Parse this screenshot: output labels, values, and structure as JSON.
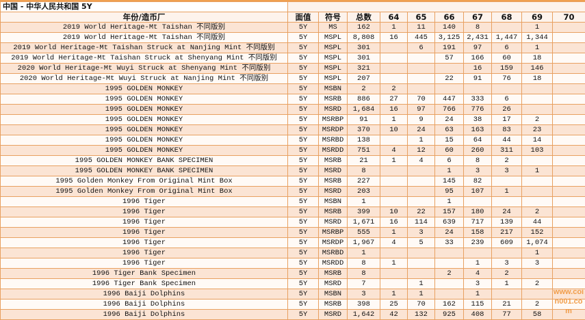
{
  "title": "中国 - 中华人民共和国 5Y",
  "headers": [
    "年份/造币厂",
    "面值",
    "符号",
    "总数",
    "64",
    "65",
    "66",
    "67",
    "68",
    "69",
    "70"
  ],
  "rows": [
    [
      "2019 World Heritage-Mt Taishan 不同版别",
      "5Y",
      "MS",
      "162",
      "1",
      "11",
      "140",
      "8",
      "",
      "1",
      ""
    ],
    [
      "2019 World Heritage-Mt Taishan 不同版别",
      "5Y",
      "MSPL",
      "8,808",
      "16",
      "445",
      "3,125",
      "2,431",
      "1,447",
      "1,344",
      ""
    ],
    [
      "2019 World Heritage-Mt Taishan Struck at Nanjing Mint 不同版别",
      "5Y",
      "MSPL",
      "301",
      "",
      "6",
      "191",
      "97",
      "6",
      "1",
      ""
    ],
    [
      "2019 World Heritage-Mt Taishan Struck at Shenyang Mint 不同版别",
      "5Y",
      "MSPL",
      "301",
      "",
      "",
      "57",
      "166",
      "60",
      "18",
      ""
    ],
    [
      "2020 World Heritage-Mt Wuyi Struck at Shenyang Mint 不同版别",
      "5Y",
      "MSPL",
      "321",
      "",
      "",
      "",
      "16",
      "159",
      "146",
      ""
    ],
    [
      "2020 World Heritage-Mt Wuyi Struck at Nanjing Mint 不同版别",
      "5Y",
      "MSPL",
      "207",
      "",
      "",
      "22",
      "91",
      "76",
      "18",
      ""
    ],
    [
      "1995 GOLDEN MONKEY",
      "5Y",
      "MSBN",
      "2",
      "2",
      "",
      "",
      "",
      "",
      "",
      ""
    ],
    [
      "1995 GOLDEN MONKEY",
      "5Y",
      "MSRB",
      "886",
      "27",
      "70",
      "447",
      "333",
      "6",
      "",
      ""
    ],
    [
      "1995 GOLDEN MONKEY",
      "5Y",
      "MSRD",
      "1,684",
      "16",
      "97",
      "766",
      "776",
      "26",
      "",
      ""
    ],
    [
      "1995 GOLDEN MONKEY",
      "5Y",
      "MSRBP",
      "91",
      "1",
      "9",
      "24",
      "38",
      "17",
      "2",
      ""
    ],
    [
      "1995 GOLDEN MONKEY",
      "5Y",
      "MSRDP",
      "370",
      "10",
      "24",
      "63",
      "163",
      "83",
      "23",
      ""
    ],
    [
      "1995 GOLDEN MONKEY",
      "5Y",
      "MSRBD",
      "138",
      "",
      "1",
      "15",
      "64",
      "44",
      "14",
      ""
    ],
    [
      "1995 GOLDEN MONKEY",
      "5Y",
      "MSRDD",
      "751",
      "4",
      "12",
      "60",
      "260",
      "311",
      "103",
      ""
    ],
    [
      "1995 GOLDEN MONKEY BANK SPECIMEN",
      "5Y",
      "MSRB",
      "21",
      "1",
      "4",
      "6",
      "8",
      "2",
      "",
      ""
    ],
    [
      "1995 GOLDEN MONKEY BANK SPECIMEN",
      "5Y",
      "MSRD",
      "8",
      "",
      "",
      "1",
      "3",
      "3",
      "1",
      ""
    ],
    [
      "1995 Golden Monkey From Original Mint Box",
      "5Y",
      "MSRB",
      "227",
      "",
      "",
      "145",
      "82",
      "",
      "",
      ""
    ],
    [
      "1995 Golden Monkey From Original Mint Box",
      "5Y",
      "MSRD",
      "203",
      "",
      "",
      "95",
      "107",
      "1",
      "",
      ""
    ],
    [
      "1996 Tiger",
      "5Y",
      "MSBN",
      "1",
      "",
      "",
      "1",
      "",
      "",
      "",
      ""
    ],
    [
      "1996 Tiger",
      "5Y",
      "MSRB",
      "399",
      "10",
      "22",
      "157",
      "180",
      "24",
      "2",
      ""
    ],
    [
      "1996 Tiger",
      "5Y",
      "MSRD",
      "1,671",
      "16",
      "114",
      "639",
      "717",
      "139",
      "44",
      ""
    ],
    [
      "1996 Tiger",
      "5Y",
      "MSRBP",
      "555",
      "1",
      "3",
      "24",
      "158",
      "217",
      "152",
      ""
    ],
    [
      "1996 Tiger",
      "5Y",
      "MSRDP",
      "1,967",
      "4",
      "5",
      "33",
      "239",
      "609",
      "1,074",
      ""
    ],
    [
      "1996 Tiger",
      "5Y",
      "MSRBD",
      "1",
      "",
      "",
      "",
      "",
      "",
      "1",
      ""
    ],
    [
      "1996 Tiger",
      "5Y",
      "MSRDD",
      "8",
      "1",
      "",
      "",
      "1",
      "3",
      "3",
      ""
    ],
    [
      "1996 Tiger Bank Specimen",
      "5Y",
      "MSRB",
      "8",
      "",
      "",
      "2",
      "4",
      "2",
      "",
      ""
    ],
    [
      "1996 Tiger Bank Specimen",
      "5Y",
      "MSRD",
      "7",
      "",
      "1",
      "",
      "3",
      "1",
      "2",
      ""
    ],
    [
      "1996 Baiji Dolphins",
      "5Y",
      "MSBN",
      "3",
      "1",
      "1",
      "",
      "1",
      "",
      "",
      ""
    ],
    [
      "1996 Baiji Dolphins",
      "5Y",
      "MSRB",
      "398",
      "25",
      "70",
      "162",
      "115",
      "21",
      "2",
      ""
    ],
    [
      "1996 Baiji Dolphins",
      "5Y",
      "MSRD",
      "1,642",
      "42",
      "132",
      "925",
      "408",
      "77",
      "58",
      ""
    ]
  ],
  "watermark": "www.coin001.com"
}
